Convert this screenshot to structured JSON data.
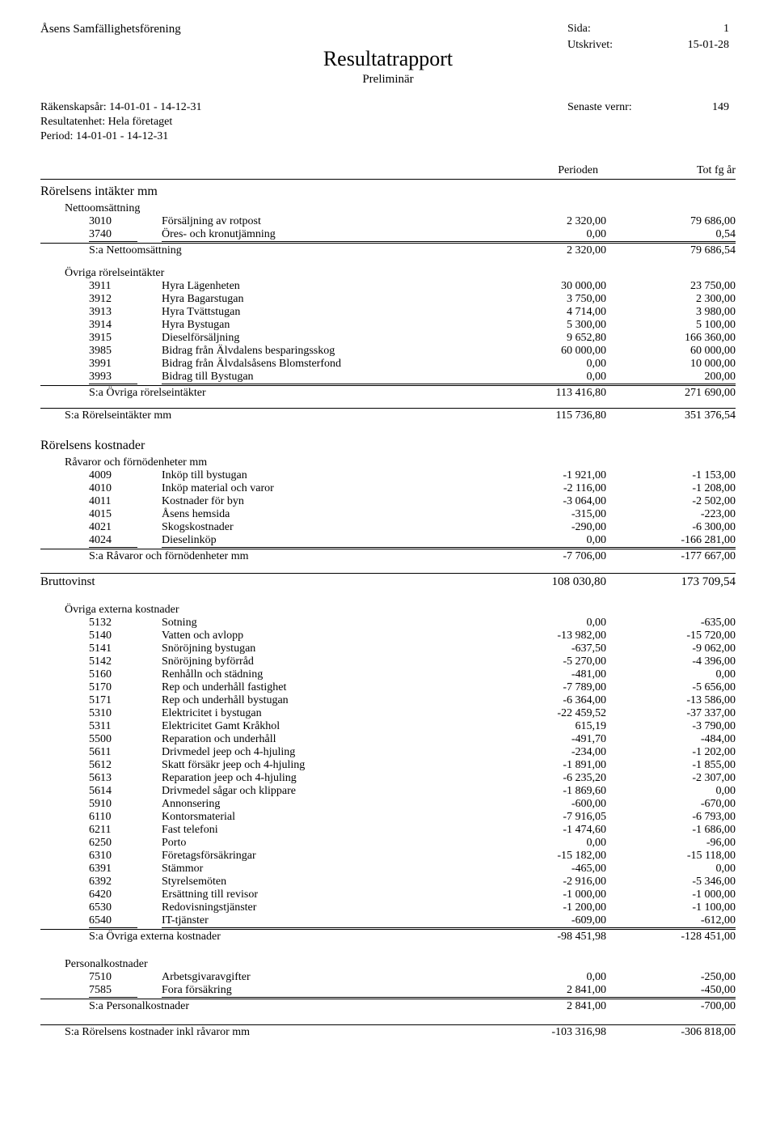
{
  "header": {
    "org": "Åsens Samfällighetsförening",
    "title": "Resultatrapport",
    "subtitle": "Preliminär",
    "page_label": "Sida:",
    "page_value": "1",
    "printed_label": "Utskrivet:",
    "printed_value": "15-01-28",
    "vernr_label": "Senaste vernr:",
    "vernr_value": "149",
    "meta": {
      "line1": "Räkenskapsår: 14-01-01 - 14-12-31",
      "line2": "Resultatenhet: Hela företaget",
      "line3": "Period: 14-01-01 - 14-12-31"
    }
  },
  "columns": {
    "period": "Perioden",
    "year": "Tot fg år"
  },
  "sections": [
    {
      "title": "Rörelsens intäkter mm",
      "subsections": [
        {
          "title": "Nettoomsättning",
          "rows": [
            {
              "acct": "3010",
              "desc": "Försäljning av rotpost",
              "v1": "2 320,00",
              "v2": "79 686,00"
            },
            {
              "acct": "3740",
              "desc": "Öres- och kronutjämning",
              "v1": "0,00",
              "v2": "0,54",
              "underline": true
            }
          ],
          "sum": {
            "label": "S:a Nettoomsättning",
            "v1": "2 320,00",
            "v2": "79 686,54"
          }
        },
        {
          "title": "Övriga rörelseintäkter",
          "rows": [
            {
              "acct": "3911",
              "desc": "Hyra Lägenheten",
              "v1": "30 000,00",
              "v2": "23 750,00"
            },
            {
              "acct": "3912",
              "desc": "Hyra Bagarstugan",
              "v1": "3 750,00",
              "v2": "2 300,00"
            },
            {
              "acct": "3913",
              "desc": "Hyra Tvättstugan",
              "v1": "4 714,00",
              "v2": "3 980,00"
            },
            {
              "acct": "3914",
              "desc": "Hyra Bystugan",
              "v1": "5 300,00",
              "v2": "5 100,00"
            },
            {
              "acct": "3915",
              "desc": "Dieselförsäljning",
              "v1": "9 652,80",
              "v2": "166 360,00"
            },
            {
              "acct": "3985",
              "desc": "Bidrag från Älvdalens besparingsskog",
              "v1": "60 000,00",
              "v2": "60 000,00"
            },
            {
              "acct": "3991",
              "desc": "Bidrag från Älvdalsåsens Blomsterfond",
              "v1": "0,00",
              "v2": "10 000,00"
            },
            {
              "acct": "3993",
              "desc": "Bidrag till Bystugan",
              "v1": "0,00",
              "v2": "200,00",
              "underline": true
            }
          ],
          "sum": {
            "label": "S:a Övriga rörelseintäkter",
            "v1": "113 416,80",
            "v2": "271 690,00"
          }
        }
      ],
      "outer_sum": {
        "label": "S:a Rörelseintäkter mm",
        "v1": "115 736,80",
        "v2": "351 376,54"
      }
    },
    {
      "title": "Rörelsens kostnader",
      "subsections": [
        {
          "title": "Råvaror och förnödenheter mm",
          "rows": [
            {
              "acct": "4009",
              "desc": "Inköp till bystugan",
              "v1": "-1 921,00",
              "v2": "-1 153,00"
            },
            {
              "acct": "4010",
              "desc": "Inköp material och varor",
              "v1": "-2 116,00",
              "v2": "-1 208,00"
            },
            {
              "acct": "4011",
              "desc": "Kostnader för byn",
              "v1": "-3 064,00",
              "v2": "-2 502,00"
            },
            {
              "acct": "4015",
              "desc": "Åsens hemsida",
              "v1": "-315,00",
              "v2": "-223,00"
            },
            {
              "acct": "4021",
              "desc": "Skogskostnader",
              "v1": "-290,00",
              "v2": "-6 300,00"
            },
            {
              "acct": "4024",
              "desc": "Dieselinköp",
              "v1": "0,00",
              "v2": "-166 281,00",
              "underline": true
            }
          ],
          "sum": {
            "label": "S:a Råvaror och förnödenheter mm",
            "v1": "-7 706,00",
            "v2": "-177 667,00"
          }
        }
      ]
    }
  ],
  "brutto": {
    "label": "Bruttovinst",
    "v1": "108 030,80",
    "v2": "173 709,54"
  },
  "post_sections": [
    {
      "title": "Övriga externa kostnader",
      "rows": [
        {
          "acct": "5132",
          "desc": "Sotning",
          "v1": "0,00",
          "v2": "-635,00"
        },
        {
          "acct": "5140",
          "desc": "Vatten och avlopp",
          "v1": "-13 982,00",
          "v2": "-15 720,00"
        },
        {
          "acct": "5141",
          "desc": "Snöröjning bystugan",
          "v1": "-637,50",
          "v2": "-9 062,00"
        },
        {
          "acct": "5142",
          "desc": "Snöröjning byförråd",
          "v1": "-5 270,00",
          "v2": "-4 396,00"
        },
        {
          "acct": "5160",
          "desc": "Renhålln och städning",
          "v1": "-481,00",
          "v2": "0,00"
        },
        {
          "acct": "5170",
          "desc": "Rep och underhåll fastighet",
          "v1": "-7 789,00",
          "v2": "-5 656,00"
        },
        {
          "acct": "5171",
          "desc": "Rep och underhåll bystugan",
          "v1": "-6 364,00",
          "v2": "-13 586,00"
        },
        {
          "acct": "5310",
          "desc": "Elektricitet i bystugan",
          "v1": "-22 459,52",
          "v2": "-37 337,00"
        },
        {
          "acct": "5311",
          "desc": "Elektricitet Gamt Kråkhol",
          "v1": "615,19",
          "v2": "-3 790,00"
        },
        {
          "acct": "5500",
          "desc": "Reparation och underhåll",
          "v1": "-491,70",
          "v2": "-484,00"
        },
        {
          "acct": "5611",
          "desc": "Drivmedel jeep och 4-hjuling",
          "v1": "-234,00",
          "v2": "-1 202,00"
        },
        {
          "acct": "5612",
          "desc": "Skatt försäkr jeep och 4-hjuling",
          "v1": "-1 891,00",
          "v2": "-1 855,00"
        },
        {
          "acct": "5613",
          "desc": "Reparation jeep och 4-hjuling",
          "v1": "-6 235,20",
          "v2": "-2 307,00"
        },
        {
          "acct": "5614",
          "desc": "Drivmedel sågar och klippare",
          "v1": "-1 869,60",
          "v2": "0,00"
        },
        {
          "acct": "5910",
          "desc": "Annonsering",
          "v1": "-600,00",
          "v2": "-670,00"
        },
        {
          "acct": "6110",
          "desc": "Kontorsmaterial",
          "v1": "-7 916,05",
          "v2": "-6 793,00"
        },
        {
          "acct": "6211",
          "desc": "Fast telefoni",
          "v1": "-1 474,60",
          "v2": "-1 686,00"
        },
        {
          "acct": "6250",
          "desc": "Porto",
          "v1": "0,00",
          "v2": "-96,00"
        },
        {
          "acct": "6310",
          "desc": "Företagsförsäkringar",
          "v1": "-15 182,00",
          "v2": "-15 118,00"
        },
        {
          "acct": "6391",
          "desc": "Stämmor",
          "v1": "-465,00",
          "v2": "0,00"
        },
        {
          "acct": "6392",
          "desc": "Styrelsemöten",
          "v1": "-2 916,00",
          "v2": "-5 346,00"
        },
        {
          "acct": "6420",
          "desc": "Ersättning till revisor",
          "v1": "-1 000,00",
          "v2": "-1 000,00"
        },
        {
          "acct": "6530",
          "desc": "Redovisningstjänster",
          "v1": "-1 200,00",
          "v2": "-1 100,00"
        },
        {
          "acct": "6540",
          "desc": "IT-tjänster",
          "v1": "-609,00",
          "v2": "-612,00",
          "underline": true
        }
      ],
      "sum": {
        "label": "S:a Övriga externa kostnader",
        "v1": "-98 451,98",
        "v2": "-128 451,00"
      }
    },
    {
      "title": "Personalkostnader",
      "rows": [
        {
          "acct": "7510",
          "desc": "Arbetsgivaravgifter",
          "v1": "0,00",
          "v2": "-250,00"
        },
        {
          "acct": "7585",
          "desc": "Fora försäkring",
          "v1": "2 841,00",
          "v2": "-450,00",
          "underline": true
        }
      ],
      "sum": {
        "label": "S:a Personalkostnader",
        "v1": "2 841,00",
        "v2": "-700,00"
      }
    }
  ],
  "final_sum": {
    "label": "S:a Rörelsens kostnader inkl råvaror mm",
    "v1": "-103 316,98",
    "v2": "-306 818,00"
  }
}
